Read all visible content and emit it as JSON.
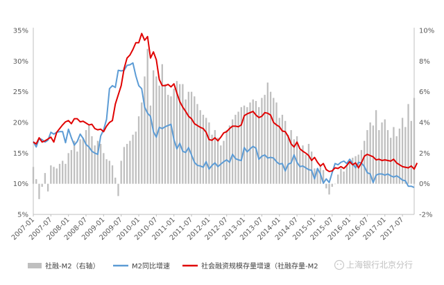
{
  "chart_data": {
    "type": "bar+line",
    "title": "",
    "xlabel": "",
    "ylabel_left": "",
    "ylabel_right": "",
    "left_axis": {
      "min": 5,
      "max": 35,
      "step": 5,
      "unit": "%"
    },
    "right_axis": {
      "min": -2,
      "max": 10,
      "step": 2,
      "unit": "%"
    },
    "left_tick_labels": [
      "5%",
      "10%",
      "15%",
      "20%",
      "25%",
      "30%",
      "35%"
    ],
    "right_tick_labels": [
      "-2%",
      "0%",
      "2%",
      "4%",
      "6%",
      "8%",
      "10%"
    ],
    "x_tick_labels": [
      "2007-01",
      "2007-07",
      "2008-01",
      "2008-07",
      "2009-01",
      "2009-07",
      "2010-01",
      "2010-07",
      "2011-01",
      "2011-07",
      "2012-01",
      "2012-07",
      "2013-01",
      "2013-07",
      "2014-01",
      "2014-07",
      "2015-01",
      "2015-07",
      "2016-01",
      "2016-07",
      "2017-01",
      "2017-07"
    ],
    "grid": false,
    "legend_position": "bottom",
    "colors": {
      "bars": "#bfbfbf",
      "m2": "#5b9bd5",
      "tsf": "#e00000",
      "axis": "#bfbfbf"
    },
    "series": [
      {
        "name": "社融-M2（右轴）",
        "kind": "bar",
        "axis": "right",
        "x": "2007-01..2017-07 monthly",
        "values": [
          1.1,
          0.3,
          -1.0,
          -0.2,
          0.7,
          -0.5,
          1.2,
          1.1,
          1.0,
          1.3,
          1.5,
          1.3,
          2.0,
          2.2,
          2.8,
          2.1,
          2.9,
          3.0,
          3.5,
          3.8,
          3.1,
          2.5,
          2.8,
          2.6,
          2.0,
          1.6,
          1.5,
          1.2,
          0.4,
          -0.8,
          1.5,
          2.4,
          2.6,
          2.8,
          3.2,
          3.4,
          4.4,
          5.3,
          7.0,
          8.8,
          5.1,
          7.4,
          7.0,
          6.4,
          7.8,
          6.5,
          5.8,
          5.7,
          6.2,
          6.7,
          6.5,
          6.5,
          5.5,
          6.0,
          6.0,
          5.7,
          5.2,
          4.8,
          4.5,
          4.3,
          4.0,
          3.2,
          3.5,
          3.0,
          2.5,
          2.8,
          3.5,
          3.8,
          4.2,
          4.5,
          4.7,
          5.0,
          5.1,
          5.0,
          5.3,
          5.5,
          5.4,
          5.0,
          5.6,
          5.8,
          6.6,
          6.0,
          5.6,
          5.3,
          4.3,
          4.5,
          4.1,
          3.2,
          3.5,
          2.9,
          3.1,
          2.2,
          2.5,
          1.9,
          2.6,
          2.1,
          1.0,
          0.9,
          1.2,
          0.9,
          -0.3,
          -0.7,
          -0.2,
          0.0,
          0.6,
          1.0,
          0.8,
          1.2,
          1.5,
          1.7,
          1.8,
          1.9,
          2.2,
          2.8,
          3.5,
          4.0,
          3.8,
          4.8,
          3.5,
          4.0,
          4.2,
          3.5,
          3.0,
          3.7,
          3.1,
          3.6,
          4.3,
          3.7,
          5.2,
          4.1,
          5.6
        ]
      },
      {
        "name": "M2同比增速",
        "kind": "line",
        "axis": "left",
        "x": "2007-01..2017-07 monthly",
        "values": [
          16.9,
          16.0,
          17.4,
          17.2,
          16.8,
          17.1,
          18.4,
          18.1,
          18.4,
          18.5,
          18.5,
          16.7,
          18.9,
          17.5,
          16.3,
          16.9,
          18.1,
          17.4,
          16.4,
          16.0,
          15.3,
          15.0,
          14.8,
          17.8,
          18.8,
          20.5,
          25.5,
          26.0,
          25.7,
          28.5,
          28.4,
          28.5,
          29.3,
          29.4,
          29.7,
          27.6,
          26.0,
          25.5,
          22.5,
          21.5,
          21.0,
          18.5,
          17.6,
          19.2,
          19.0,
          19.3,
          19.5,
          19.7,
          17.2,
          15.7,
          16.6,
          15.3,
          15.1,
          15.9,
          14.7,
          13.5,
          13.0,
          12.9,
          12.7,
          13.6,
          12.4,
          13.0,
          13.4,
          12.8,
          13.2,
          13.6,
          13.9,
          13.5,
          14.8,
          14.1,
          13.9,
          13.8,
          15.9,
          15.2,
          15.7,
          16.1,
          15.8,
          14.0,
          14.5,
          14.7,
          14.2,
          14.3,
          14.2,
          13.6,
          13.2,
          13.3,
          12.1,
          13.2,
          13.4,
          14.7,
          13.5,
          12.8,
          12.9,
          12.6,
          12.3,
          12.2,
          10.8,
          12.5,
          11.6,
          10.1,
          10.8,
          10.2,
          11.8,
          13.3,
          13.1,
          13.5,
          13.7,
          13.3,
          14.0,
          13.3,
          12.6,
          13.5,
          13.4,
          12.8,
          11.8,
          11.6,
          10.2,
          11.4,
          11.6,
          11.6,
          11.4,
          11.6,
          11.3,
          11.1,
          11.3,
          11.0,
          10.6,
          10.5,
          9.6,
          9.6,
          9.4
        ]
      },
      {
        "name": "社会融资规模存量增速（社融存量-M2）",
        "kind": "line",
        "axis": "left",
        "x": "2007-01..2017-07 monthly",
        "values": [
          16.8,
          16.5,
          17.5,
          16.8,
          17.0,
          17.3,
          17.6,
          16.8,
          18.4,
          19.0,
          19.6,
          20.1,
          20.3,
          19.8,
          20.6,
          20.6,
          20.1,
          20.2,
          19.9,
          19.6,
          19.7,
          19.0,
          18.8,
          18.9,
          18.5,
          19.4,
          20.0,
          20.3,
          23.0,
          24.5,
          26.0,
          28.8,
          30.5,
          31.0,
          31.9,
          33.0,
          33.0,
          34.5,
          33.4,
          34.0,
          30.5,
          31.5,
          30.2,
          27.0,
          26.0,
          26.0,
          26.2,
          25.8,
          26.3,
          24.8,
          23.4,
          22.5,
          21.8,
          21.0,
          20.6,
          19.8,
          19.5,
          19.2,
          19.0,
          18.4,
          17.2,
          17.1,
          17.5,
          17.0,
          17.6,
          18.3,
          18.5,
          19.0,
          19.4,
          19.4,
          19.3,
          19.6,
          21.1,
          21.4,
          21.6,
          21.8,
          21.2,
          20.8,
          21.0,
          21.6,
          21.5,
          21.2,
          20.0,
          19.6,
          19.3,
          18.6,
          18.5,
          17.7,
          16.5,
          16.0,
          16.8,
          15.7,
          15.3,
          15.0,
          14.6,
          13.8,
          14.3,
          13.5,
          12.9,
          13.3,
          12.3,
          12.0,
          12.1,
          12.6,
          12.5,
          12.8,
          12.5,
          13.0,
          13.6,
          13.1,
          13.4,
          12.6,
          13.4,
          14.5,
          14.8,
          14.6,
          14.4,
          13.9,
          14.0,
          13.8,
          13.9,
          13.8,
          13.7,
          14.0,
          13.4,
          13.1,
          12.8,
          12.7,
          12.6,
          12.9,
          12.4,
          13.4
        ]
      }
    ],
    "legend": [
      {
        "label": "社融-M2（右轴）",
        "marker": "bar",
        "color": "#bfbfbf"
      },
      {
        "label": "M2同比增速",
        "marker": "line",
        "color": "#5b9bd5"
      },
      {
        "label": "社会融资规模存量增速（社融存量-M2",
        "marker": "line",
        "color": "#e00000"
      }
    ]
  },
  "watermark": {
    "text": "上海银行北京分行",
    "icon": "wechat-icon"
  }
}
